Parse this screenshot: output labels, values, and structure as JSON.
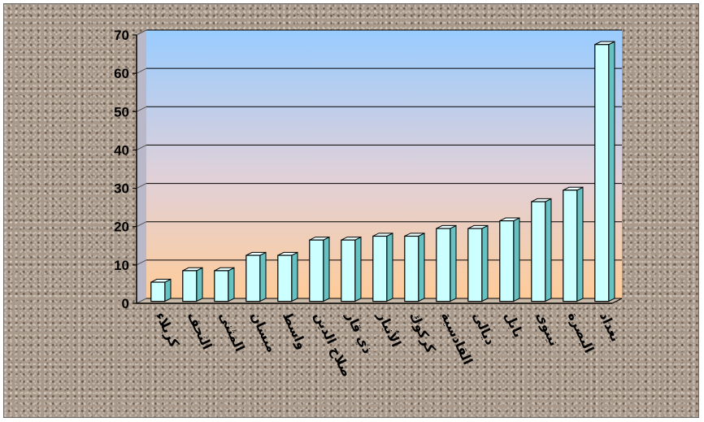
{
  "chart_data": {
    "type": "bar",
    "title": "",
    "xlabel": "",
    "ylabel": "",
    "ylim": [
      0,
      70
    ],
    "yticks": [
      0,
      10,
      20,
      30,
      40,
      50,
      60,
      70
    ],
    "grid": true,
    "legend": "none",
    "categories": [
      "كربلاء",
      "النجف",
      "المثنى",
      "ميسان",
      "واسط",
      "صلاح الدين",
      "ذي قار",
      "الأنبار",
      "كركوك",
      "القادسية",
      "ديالى",
      "بابل",
      "نينوى",
      "البصرة",
      "بغداد"
    ],
    "values": [
      5,
      8,
      8,
      12,
      12,
      16,
      16,
      17,
      17,
      19,
      19,
      21,
      26,
      29,
      67
    ],
    "colors": {
      "bar_front": "#ccffff",
      "bar_side": "#66c2c2",
      "bar_top": "#eaffff",
      "bar_edge": "#000000",
      "plot_top": "#99ccff",
      "plot_bottom": "#ffcc99",
      "gridline": "#000000"
    }
  }
}
